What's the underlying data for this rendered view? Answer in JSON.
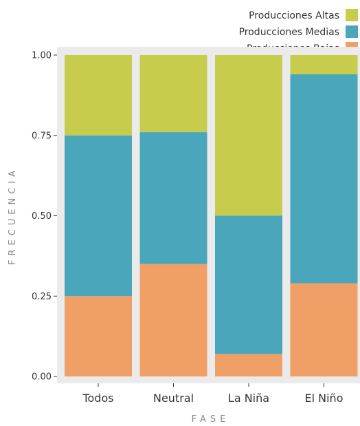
{
  "chart_data": {
    "type": "bar",
    "stacked": true,
    "normalized": true,
    "categories": [
      "Todos",
      "Neutral",
      "La Niña",
      "El Niño"
    ],
    "series": [
      {
        "name": "Producciones Bajas",
        "color": "#f0a067",
        "values": [
          0.25,
          0.35,
          0.07,
          0.29
        ]
      },
      {
        "name": "Producciones Medias",
        "color": "#4aa6ba",
        "values": [
          0.5,
          0.41,
          0.43,
          0.65
        ]
      },
      {
        "name": "Producciones Altas",
        "color": "#c8cc4d",
        "values": [
          0.25,
          0.24,
          0.5,
          0.06
        ]
      }
    ],
    "legend_order": [
      "Producciones Altas",
      "Producciones Medias",
      "Producciones Bajas"
    ],
    "legend_position": "top-right",
    "ylim": [
      0,
      1
    ],
    "yticks": [
      0,
      0.25,
      0.5,
      0.75,
      1.0
    ],
    "ytick_labels": [
      "0.00",
      "0.25",
      "0.50",
      "0.75",
      "1.00"
    ],
    "xlabel": "FASE",
    "ylabel": "FRECUENCIA",
    "grid": false,
    "background": "#ebebeb"
  }
}
